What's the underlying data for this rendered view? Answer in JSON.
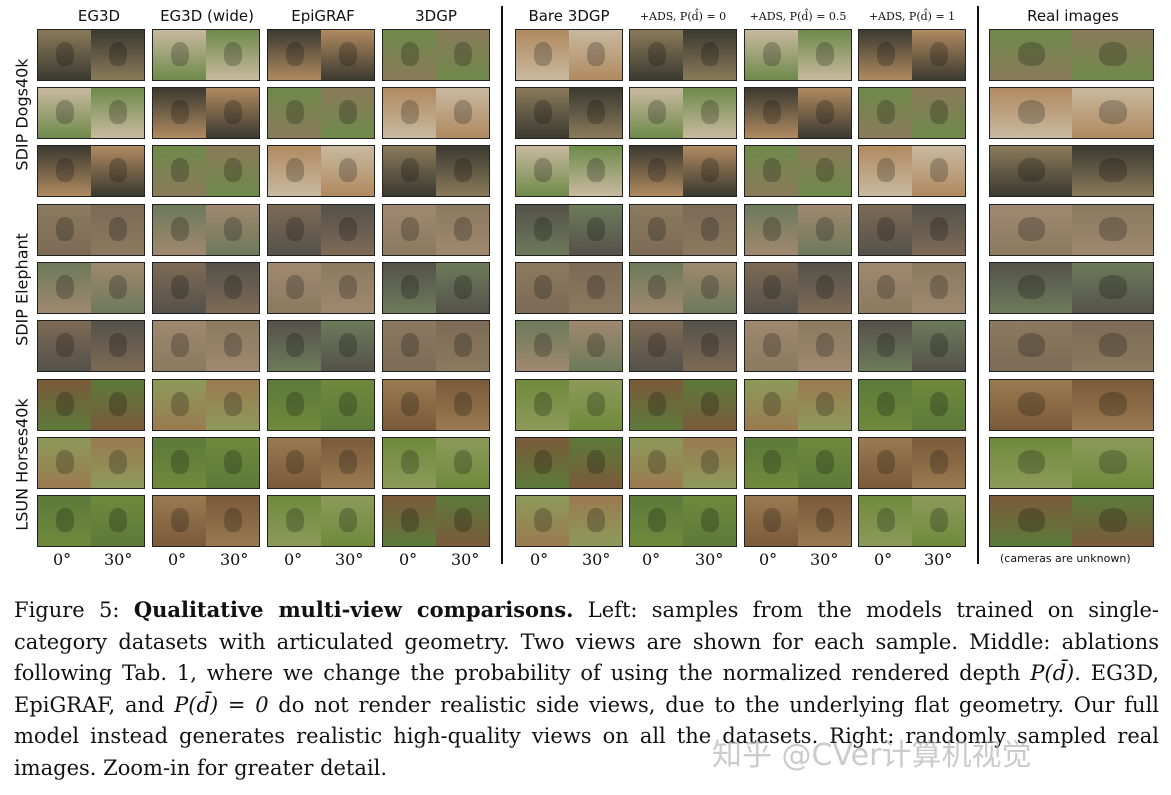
{
  "columns": {
    "left": [
      "EG3D",
      "EG3D (wide)",
      "EpiGRAF",
      "3DGP"
    ],
    "middle": [
      "Bare 3DGP",
      "+ADS, P(d̂) = 0",
      "+ADS, P(d̂) = 0.5",
      "+ADS, P(d̂) = 1"
    ],
    "right": "Real images"
  },
  "rows": {
    "dogs": "SDIP Dogs40k",
    "elephant": "SDIP Elephant",
    "horses": "LSUN Horses40k"
  },
  "views": [
    "0°",
    "30°"
  ],
  "cameras_note": "(cameras are unknown)",
  "caption": {
    "label": "Figure 5:",
    "bold": "Qualitative multi-view comparisons.",
    "p1": "Left: samples from the models trained on single-category datasets with articulated geometry. Two views are shown for each sample. Middle: ablations following Tab. 1, where we change the probability of using the normalized rendered depth",
    "m1": "P(d̄).",
    "p2": "EG3D, EpiGRAF, and",
    "m2": "P(d̄) = 0",
    "p3": "do not render realistic side views, due to the underlying flat geometry. Our full model instead generates realistic high-quality views on all the datasets. Right: randomly sampled real images. Zoom-in for greater detail."
  },
  "watermark": "知乎 @CVer计算机视觉",
  "palettes": {
    "dogs": [
      "#8a7a5a",
      "#c9b9a0",
      "#3b3a30",
      "#6e8a4a",
      "#b08a60"
    ],
    "elephant": [
      "#7d6a55",
      "#a08870",
      "#55524a",
      "#8b7a60",
      "#6d7a5a"
    ],
    "horses": [
      "#6f8a3c",
      "#7a5a3a",
      "#8d9a5a",
      "#5c7a3a",
      "#9a7a50"
    ]
  }
}
